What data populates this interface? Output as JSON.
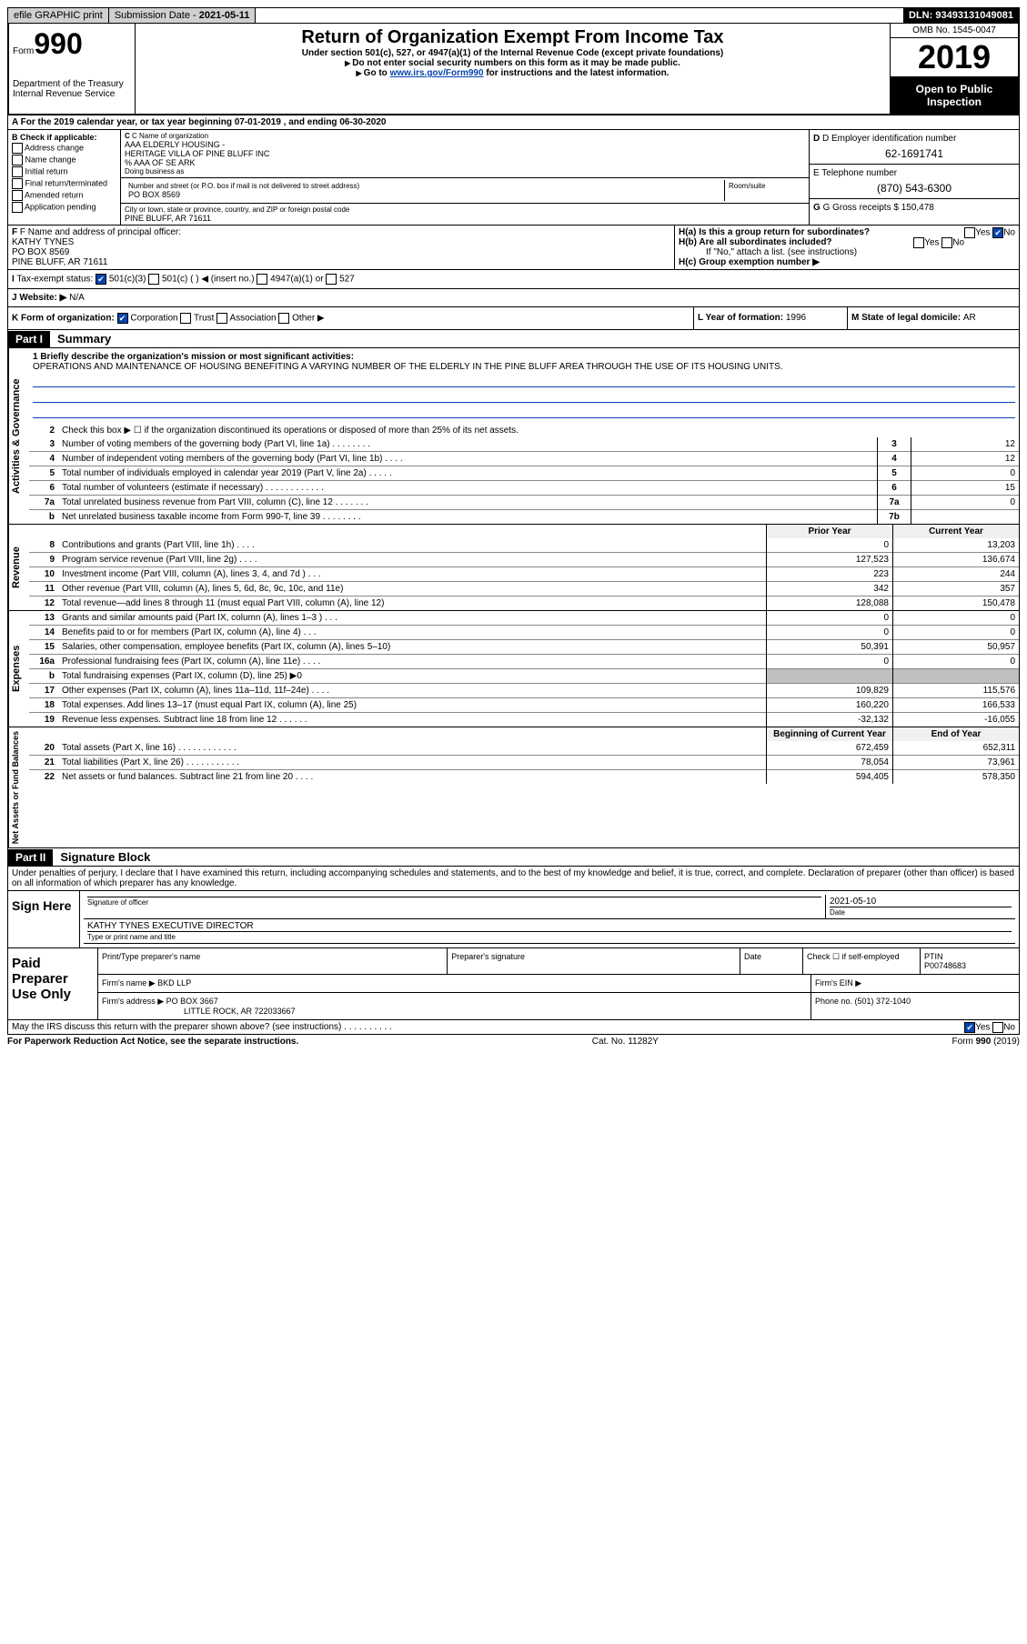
{
  "topbar": {
    "efile": "efile GRAPHIC print",
    "submission_label": "Submission Date - ",
    "submission_date": "2021-05-11",
    "dln_label": "DLN: ",
    "dln": "93493131049081"
  },
  "header": {
    "form_label": "Form",
    "form_num": "990",
    "dept1": "Department of the Treasury",
    "dept2": "Internal Revenue Service",
    "title": "Return of Organization Exempt From Income Tax",
    "sub1": "Under section 501(c), 527, or 4947(a)(1) of the Internal Revenue Code (except private foundations)",
    "sub2": "Do not enter social security numbers on this form as it may be made public.",
    "sub3_pre": "Go to ",
    "sub3_link": "www.irs.gov/Form990",
    "sub3_post": " for instructions and the latest information.",
    "omb": "OMB No. 1545-0047",
    "year": "2019",
    "open": "Open to Public Inspection"
  },
  "row_a": {
    "text": "A For the 2019 calendar year, or tax year beginning 07-01-2019   , and ending 06-30-2020"
  },
  "section_b": {
    "title": "B Check if applicable:",
    "opts": [
      "Address change",
      "Name change",
      "Initial return",
      "Final return/terminated",
      "Amended return",
      "Application pending"
    ]
  },
  "section_c": {
    "name_label": "C Name of organization",
    "name1": "AAA ELDERLY HOUSING -",
    "name2": "HERITAGE VILLA OF PINE BLUFF INC",
    "name3": "% AAA OF SE ARK",
    "dba": "Doing business as",
    "addr_label": "Number and street (or P.O. box if mail is not delivered to street address)",
    "room_label": "Room/suite",
    "addr": "PO BOX 8569",
    "city_label": "City or town, state or province, country, and ZIP or foreign postal code",
    "city": "PINE BLUFF, AR  71611"
  },
  "section_d": {
    "ein_label": "D Employer identification number",
    "ein": "62-1691741",
    "phone_label": "E Telephone number",
    "phone": "(870) 543-6300",
    "gross_label": "G Gross receipts $ ",
    "gross": "150,478"
  },
  "section_f": {
    "label": "F Name and address of principal officer:",
    "name": "KATHY TYNES",
    "addr": "PO BOX 8569",
    "city": "PINE BLUFF, AR  71611"
  },
  "section_h": {
    "a": "H(a)  Is this a group return for subordinates?",
    "a_yes": "Yes",
    "a_no": "No",
    "b": "H(b)  Are all subordinates included?",
    "b_yes": "Yes",
    "b_no": "No",
    "b_note": "If \"No,\" attach a list. (see instructions)",
    "c": "H(c)  Group exemption number ▶"
  },
  "section_i": {
    "label": "I  Tax-exempt status:",
    "o1": "501(c)(3)",
    "o2": "501(c) (  ) ◀ (insert no.)",
    "o3": "4947(a)(1) or",
    "o4": "527"
  },
  "section_j": {
    "label": "J  Website: ▶",
    "value": "N/A"
  },
  "section_k": {
    "label": "K Form of organization:",
    "o1": "Corporation",
    "o2": "Trust",
    "o3": "Association",
    "o4": "Other ▶"
  },
  "section_l": {
    "label": "L Year of formation: ",
    "value": "1996"
  },
  "section_m": {
    "label": "M State of legal domicile: ",
    "value": "AR"
  },
  "part1": {
    "header": "Part I",
    "title": "Summary",
    "line1_label": "1  Briefly describe the organization's mission or most significant activities:",
    "mission": "OPERATIONS AND MAINTENANCE OF HOUSING BENEFITING A VARYING NUMBER OF THE ELDERLY IN THE PINE BLUFF AREA THROUGH THE USE OF ITS HOUSING UNITS.",
    "line2": "Check this box ▶ ☐  if the organization discontinued its operations or disposed of more than 25% of its net assets.",
    "gov_rows": [
      {
        "n": "3",
        "desc": "Number of voting members of the governing body (Part VI, line 1a)  .   .   .   .   .   .   .   .",
        "box": "3",
        "val": "12"
      },
      {
        "n": "4",
        "desc": "Number of independent voting members of the governing body (Part VI, line 1b)  .   .   .   .",
        "box": "4",
        "val": "12"
      },
      {
        "n": "5",
        "desc": "Total number of individuals employed in calendar year 2019 (Part V, line 2a)  .   .   .   .   .",
        "box": "5",
        "val": "0"
      },
      {
        "n": "6",
        "desc": "Total number of volunteers (estimate if necessary)   .   .   .   .   .   .   .   .   .   .   .   .",
        "box": "6",
        "val": "15"
      },
      {
        "n": "7a",
        "desc": "Total unrelated business revenue from Part VIII, column (C), line 12  .   .   .   .   .   .   .",
        "box": "7a",
        "val": "0"
      },
      {
        "n": "b",
        "desc": "Net unrelated business taxable income from Form 990-T, line 39   .   .   .   .   .   .   .   .",
        "box": "7b",
        "val": ""
      }
    ],
    "py_hdr": "Prior Year",
    "cy_hdr": "Current Year",
    "rev_rows": [
      {
        "n": "8",
        "desc": "Contributions and grants (Part VIII, line 1h)   .   .   .   .",
        "py": "0",
        "cy": "13,203"
      },
      {
        "n": "9",
        "desc": "Program service revenue (Part VIII, line 2g)   .   .   .   .",
        "py": "127,523",
        "cy": "136,674"
      },
      {
        "n": "10",
        "desc": "Investment income (Part VIII, column (A), lines 3, 4, and 7d )   .   .   .",
        "py": "223",
        "cy": "244"
      },
      {
        "n": "11",
        "desc": "Other revenue (Part VIII, column (A), lines 5, 6d, 8c, 9c, 10c, and 11e)",
        "py": "342",
        "cy": "357"
      },
      {
        "n": "12",
        "desc": "Total revenue—add lines 8 through 11 (must equal Part VIII, column (A), line 12)",
        "py": "128,088",
        "cy": "150,478"
      }
    ],
    "exp_rows": [
      {
        "n": "13",
        "desc": "Grants and similar amounts paid (Part IX, column (A), lines 1–3 )  .   .   .",
        "py": "0",
        "cy": "0"
      },
      {
        "n": "14",
        "desc": "Benefits paid to or for members (Part IX, column (A), line 4)  .   .   .",
        "py": "0",
        "cy": "0"
      },
      {
        "n": "15",
        "desc": "Salaries, other compensation, employee benefits (Part IX, column (A), lines 5–10)",
        "py": "50,391",
        "cy": "50,957"
      },
      {
        "n": "16a",
        "desc": "Professional fundraising fees (Part IX, column (A), line 11e)  .   .   .   .",
        "py": "0",
        "cy": "0"
      },
      {
        "n": "b",
        "desc": "Total fundraising expenses (Part IX, column (D), line 25) ▶0",
        "py": "",
        "cy": "",
        "shaded": true
      },
      {
        "n": "17",
        "desc": "Other expenses (Part IX, column (A), lines 11a–11d, 11f–24e)  .   .   .   .",
        "py": "109,829",
        "cy": "115,576"
      },
      {
        "n": "18",
        "desc": "Total expenses. Add lines 13–17 (must equal Part IX, column (A), line 25)",
        "py": "160,220",
        "cy": "166,533"
      },
      {
        "n": "19",
        "desc": "Revenue less expenses. Subtract line 18 from line 12  .  .   .   .   .   .",
        "py": "-32,132",
        "cy": "-16,055"
      }
    ],
    "na_by_hdr": "Beginning of Current Year",
    "na_ey_hdr": "End of Year",
    "na_rows": [
      {
        "n": "20",
        "desc": "Total assets (Part X, line 16)  .   .   .   .   .   .   .   .   .   .   .   .",
        "py": "672,459",
        "cy": "652,311"
      },
      {
        "n": "21",
        "desc": "Total liabilities (Part X, line 26)  .   .   .   .   .   .   .   .   .   .   .",
        "py": "78,054",
        "cy": "73,961"
      },
      {
        "n": "22",
        "desc": "Net assets or fund balances. Subtract line 21 from line 20  .   .   .   .",
        "py": "594,405",
        "cy": "578,350"
      }
    ],
    "vlabel_gov": "Activities & Governance",
    "vlabel_rev": "Revenue",
    "vlabel_exp": "Expenses",
    "vlabel_na": "Net Assets or Fund Balances"
  },
  "part2": {
    "header": "Part II",
    "title": "Signature Block",
    "decl": "Under penalties of perjury, I declare that I have examined this return, including accompanying schedules and statements, and to the best of my knowledge and belief, it is true, correct, and complete. Declaration of preparer (other than officer) is based on all information of which preparer has any knowledge.",
    "sign_here": "Sign Here",
    "sig_officer": "Signature of officer",
    "date_label": "Date",
    "date_val": "2021-05-10",
    "officer_name": "KATHY TYNES  EXECUTIVE DIRECTOR",
    "type_name": "Type or print name and title",
    "paid_prep": "Paid Preparer Use Only",
    "print_name": "Print/Type preparer's name",
    "prep_sig": "Preparer's signature",
    "check_self": "Check ☐ if self-employed",
    "ptin_label": "PTIN",
    "ptin": "P00748683",
    "firm_name_label": "Firm's name    ▶",
    "firm_name": "BKD LLP",
    "firm_ein_label": "Firm's EIN ▶",
    "firm_addr_label": "Firm's address ▶",
    "firm_addr1": "PO BOX 3667",
    "firm_addr2": "LITTLE ROCK, AR  722033667",
    "firm_phone_label": "Phone no. ",
    "firm_phone": "(501) 372-1040",
    "discuss": "May the IRS discuss this return with the preparer shown above? (see instructions)   .   .   .   .   .   .   .   .   .   .",
    "discuss_yes": "Yes",
    "discuss_no": "No"
  },
  "footer": {
    "left": "For Paperwork Reduction Act Notice, see the separate instructions.",
    "mid": "Cat. No. 11282Y",
    "right": "Form 990 (2019)"
  }
}
